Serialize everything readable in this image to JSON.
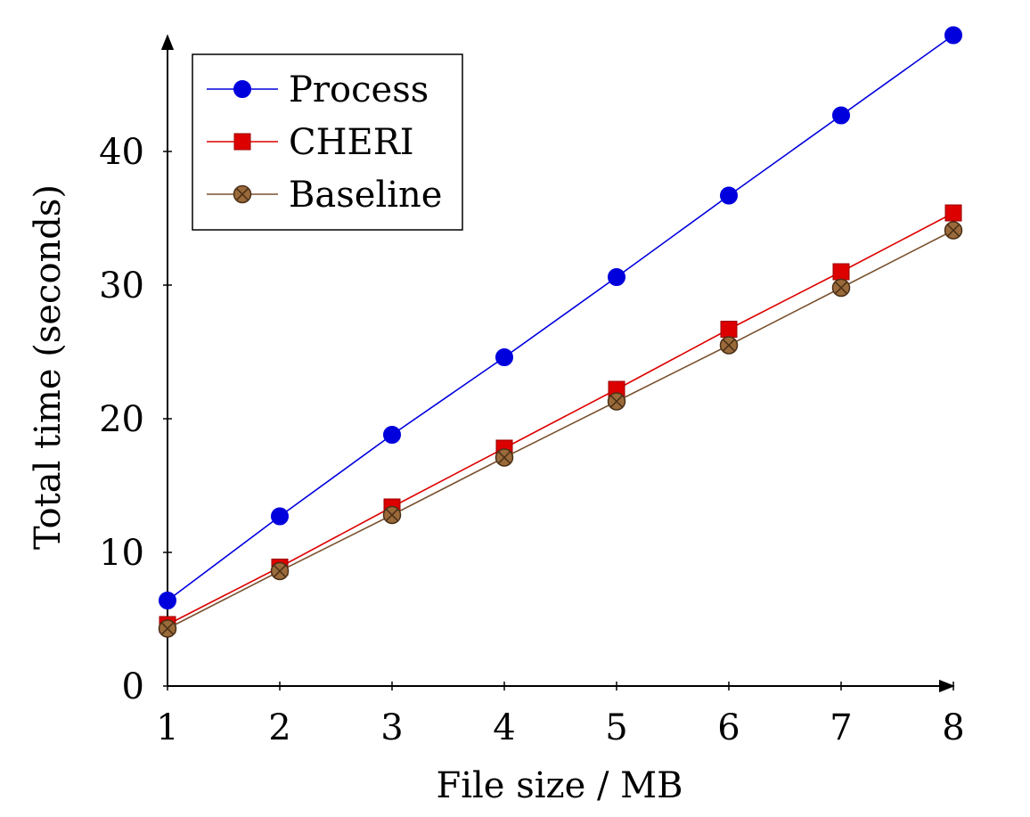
{
  "chart_data": {
    "type": "line",
    "xlabel": "File size / MB",
    "ylabel": "Total time (seconds)",
    "x": [
      1,
      2,
      3,
      4,
      5,
      6,
      7,
      8
    ],
    "x_ticks": [
      "1",
      "2",
      "3",
      "4",
      "5",
      "6",
      "7",
      "8"
    ],
    "y_ticks": [
      "0",
      "10",
      "20",
      "30",
      "40"
    ],
    "y_tick_values": [
      0,
      10,
      20,
      30,
      40
    ],
    "xlim": [
      1,
      8
    ],
    "ylim": [
      0,
      48.5
    ],
    "grid": false,
    "legend_position": "top-left",
    "series": [
      {
        "name": "Process",
        "color": "#0000dd",
        "marker": "circle",
        "values": [
          6.4,
          12.7,
          18.8,
          24.6,
          30.6,
          36.7,
          42.7,
          48.7
        ]
      },
      {
        "name": "CHERI",
        "color": "#dd0000",
        "marker": "square",
        "values": [
          4.6,
          8.9,
          13.4,
          17.8,
          22.2,
          26.7,
          31.0,
          35.4
        ]
      },
      {
        "name": "Baseline",
        "color": "#7a5230",
        "marker": "circle-x",
        "values": [
          4.3,
          8.6,
          12.8,
          17.1,
          21.3,
          25.5,
          29.8,
          34.1
        ]
      }
    ]
  }
}
